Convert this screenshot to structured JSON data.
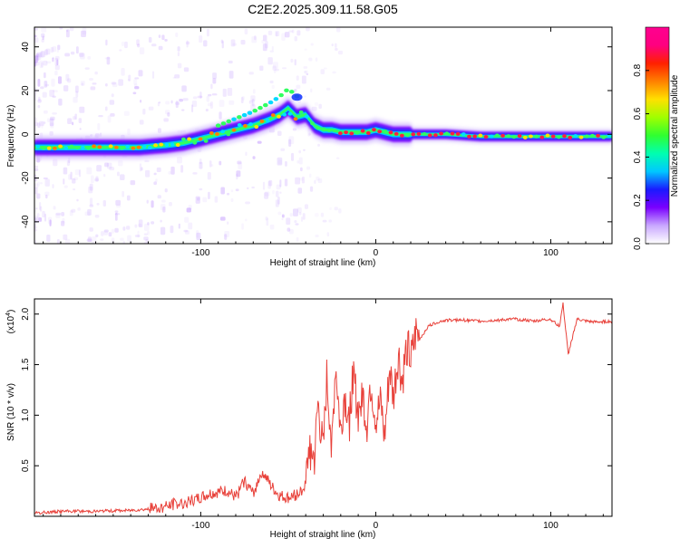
{
  "title": "C2E2.2025.309.11.58.G05",
  "chart_data": [
    {
      "type": "heatmap",
      "title": "C2E2.2025.309.11.58.G05",
      "xlabel": "Height of straight line (km)",
      "ylabel": "Frequency (Hz)",
      "xlim": [
        -195,
        135
      ],
      "ylim": [
        -50,
        49
      ],
      "xticks": [
        -100,
        0,
        100
      ],
      "xtick_labels": [
        "-100",
        "0",
        "100"
      ],
      "yticks": [
        -40,
        -20,
        0,
        20,
        40
      ],
      "ytick_labels": [
        "-40",
        "-20",
        "0",
        "20",
        "40"
      ],
      "colorbar": {
        "label": "Normalized spectral amplitude",
        "range": [
          0,
          1
        ],
        "ticks": [
          0.0,
          0.2,
          0.4,
          0.6,
          0.8
        ],
        "tick_labels": [
          "0.0",
          "0.2",
          "0.4",
          "0.6",
          "0.8"
        ],
        "colors": [
          "#ffffff",
          "#c9a8ff",
          "#7a00ff",
          "#1a1aff",
          "#00c8ff",
          "#00ffb0",
          "#30ff30",
          "#a0ff00",
          "#ffe000",
          "#ff8000",
          "#ff2000",
          "#ff0080",
          "#ff0090"
        ]
      },
      "ridge": {
        "x": [
          -195,
          -180,
          -165,
          -150,
          -135,
          -120,
          -110,
          -100,
          -90,
          -80,
          -70,
          -60,
          -55,
          -50,
          -45,
          -40,
          -35,
          -30,
          -25,
          -20,
          -15,
          -10,
          -5,
          0,
          5,
          10,
          20,
          40,
          60,
          80,
          100,
          120,
          135
        ],
        "freq": [
          -6,
          -6,
          -6,
          -6,
          -6,
          -5,
          -4,
          -2,
          0,
          2,
          4,
          7,
          9,
          12,
          8,
          9,
          4,
          2,
          2,
          1,
          1,
          1,
          1,
          2,
          1,
          0,
          0,
          0,
          -1,
          -1,
          -1,
          -1,
          -1
        ]
      }
    },
    {
      "type": "line",
      "xlabel": "Height of straight line (km)",
      "ylabel": "SNR (10 * v/v)",
      "scale_label": "(x10",
      "scale_exp": "4",
      "scale_close": ")",
      "xlim": [
        -195,
        135
      ],
      "ylim": [
        0,
        2.15
      ],
      "xticks": [
        -100,
        0,
        100
      ],
      "xtick_labels": [
        "-100",
        "0",
        "100"
      ],
      "yticks": [
        0.5,
        1.0,
        1.5,
        2.0
      ],
      "ytick_labels": [
        "0.5",
        "1.0",
        "1.5",
        "2.0"
      ],
      "series": [
        {
          "name": "SNR",
          "color": "#e8413a",
          "x": [
            -195,
            -180,
            -160,
            -140,
            -125,
            -115,
            -105,
            -95,
            -85,
            -80,
            -75,
            -70,
            -65,
            -60,
            -55,
            -50,
            -45,
            -40,
            -38,
            -35,
            -33,
            -30,
            -28,
            -25,
            -23,
            -20,
            -18,
            -15,
            -13,
            -10,
            -8,
            -5,
            -3,
            0,
            3,
            5,
            8,
            10,
            13,
            15,
            18,
            20,
            23,
            25,
            30,
            35,
            40,
            50,
            60,
            70,
            80,
            90,
            100,
            105,
            107,
            110,
            115,
            120,
            125,
            135
          ],
          "values": [
            0.03,
            0.05,
            0.05,
            0.06,
            0.08,
            0.12,
            0.15,
            0.22,
            0.25,
            0.18,
            0.35,
            0.22,
            0.45,
            0.3,
            0.2,
            0.18,
            0.22,
            0.3,
            0.7,
            0.55,
            1.1,
            0.6,
            1.35,
            0.7,
            1.5,
            0.8,
            1.2,
            0.95,
            1.4,
            1.0,
            1.25,
            0.9,
            1.35,
            0.95,
            1.1,
            0.75,
            1.45,
            1.15,
            1.6,
            1.3,
            1.7,
            1.5,
            1.8,
            1.75,
            1.88,
            1.92,
            1.94,
            1.94,
            1.93,
            1.94,
            1.95,
            1.93,
            1.95,
            1.88,
            2.1,
            1.6,
            1.95,
            1.93,
            1.92,
            1.93
          ]
        }
      ]
    }
  ]
}
